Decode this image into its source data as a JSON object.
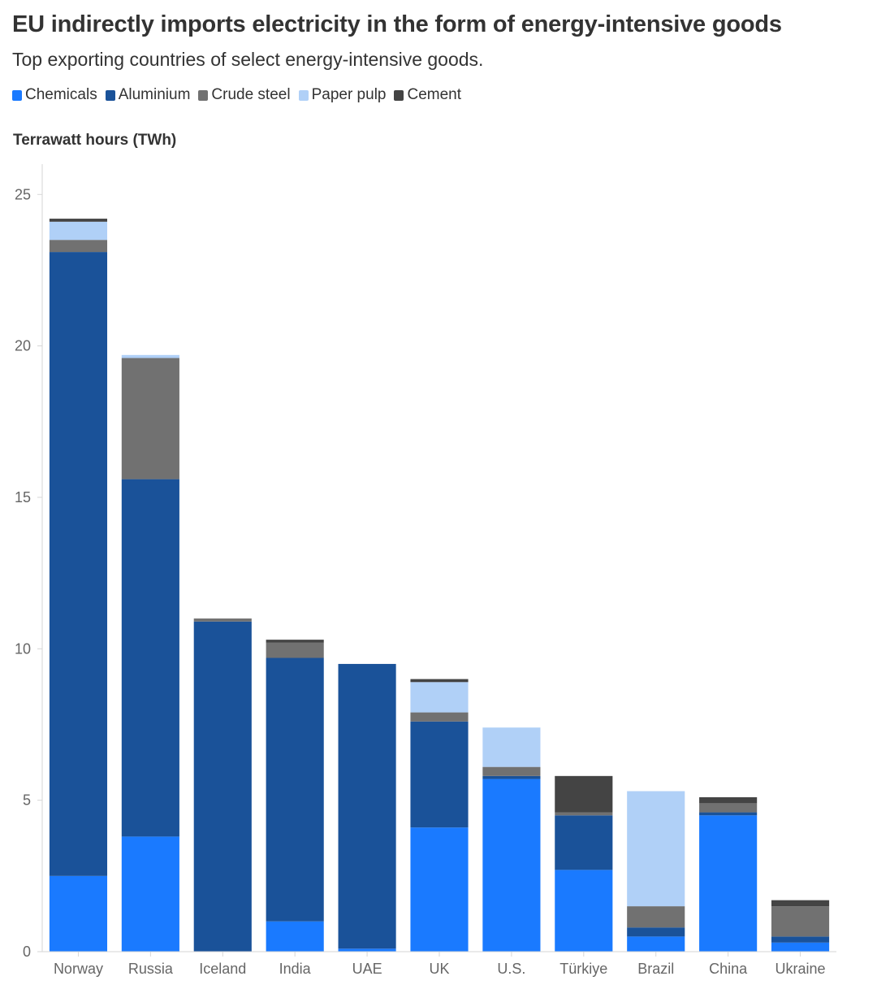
{
  "chart_data": {
    "type": "bar",
    "stacked": true,
    "title": "EU indirectly imports electricity in the form of energy-intensive goods",
    "subtitle": "Top exporting countries of select energy-intensive goods.",
    "ylabel": "Terrawatt hours (TWh)",
    "xlabel": "",
    "ylim": [
      0,
      26
    ],
    "yticks": [
      "0",
      "5",
      "10",
      "15",
      "20",
      "25"
    ],
    "legend_position": "top-left",
    "categories": [
      "Norway",
      "Russia",
      "Iceland",
      "India",
      "UAE",
      "UK",
      "U.S.",
      "Türkiye",
      "Brazil",
      "China",
      "Ukraine"
    ],
    "series": [
      {
        "name": "Chemicals",
        "color": "#1a7aff",
        "values": [
          2.5,
          3.8,
          0.0,
          1.0,
          0.1,
          4.1,
          5.7,
          2.7,
          0.5,
          4.5,
          0.3
        ]
      },
      {
        "name": "Aluminium",
        "color": "#1a5299",
        "values": [
          20.6,
          11.8,
          10.9,
          8.7,
          9.4,
          3.5,
          0.1,
          1.8,
          0.3,
          0.1,
          0.2
        ]
      },
      {
        "name": "Crude steel",
        "color": "#717171",
        "values": [
          0.4,
          4.0,
          0.1,
          0.5,
          0.0,
          0.3,
          0.3,
          0.1,
          0.7,
          0.3,
          1.0
        ]
      },
      {
        "name": "Paper pulp",
        "color": "#b0d0f7",
        "values": [
          0.6,
          0.1,
          0.0,
          0.0,
          0.0,
          1.0,
          1.3,
          0.0,
          3.8,
          0.0,
          0.0
        ]
      },
      {
        "name": "Cement",
        "color": "#444444",
        "values": [
          0.1,
          0.0,
          0.0,
          0.1,
          0.0,
          0.1,
          0.0,
          1.2,
          0.0,
          0.2,
          0.2
        ]
      }
    ]
  }
}
